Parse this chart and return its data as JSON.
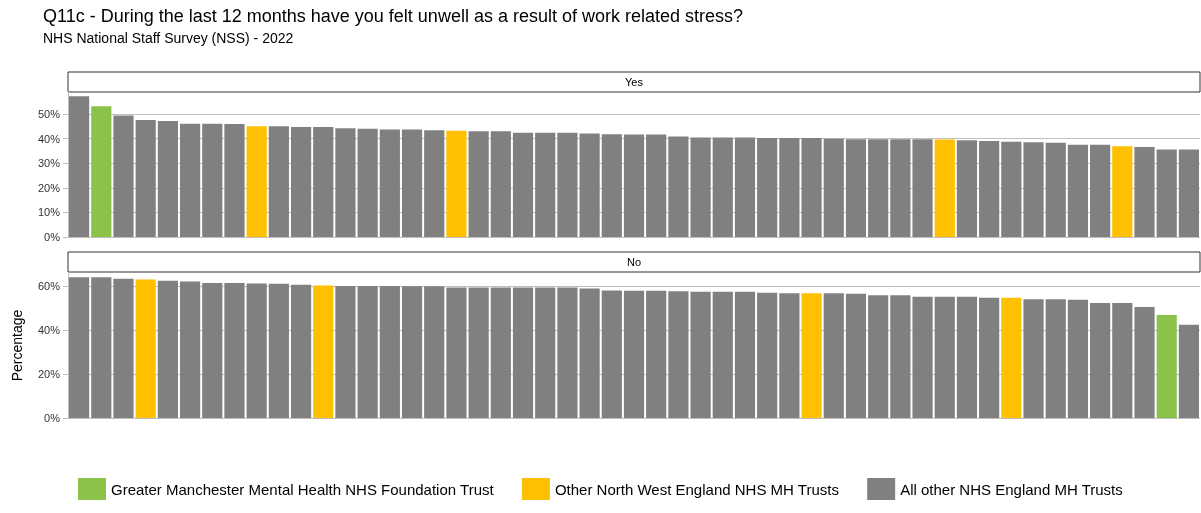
{
  "chart_data": [
    {
      "type": "bar",
      "title": "Q11c - During the last 12 months have you felt unwell as a result of work related stress?",
      "subtitle": "NHS National Staff Survey (NSS) - 2022",
      "annotations": [
        "Yes"
      ],
      "categories": [
        null,
        null,
        null,
        null,
        null,
        null,
        null,
        null,
        null,
        null,
        null,
        null,
        null,
        null,
        null,
        null,
        null,
        null,
        null,
        null,
        null,
        null,
        null,
        null,
        null,
        null,
        null,
        null,
        null,
        null,
        null,
        null,
        null,
        null,
        null,
        null,
        null,
        null,
        null,
        null,
        null,
        null,
        null,
        null,
        null,
        null,
        null,
        null,
        null,
        null,
        null
      ],
      "series": [
        {
          "color": "#8bc34a",
          "values": [
            null,
            53.2,
            null,
            null,
            null,
            null,
            null,
            null,
            null,
            null,
            null,
            null,
            null,
            null,
            null,
            null,
            null,
            null,
            null,
            null,
            null,
            null,
            null,
            null,
            null,
            null,
            null,
            null,
            null,
            null,
            null,
            null,
            null,
            null,
            null,
            null,
            null,
            null,
            null,
            null,
            null,
            null,
            null,
            null,
            null,
            null,
            null,
            null,
            null,
            null,
            null
          ]
        },
        {
          "color": "#ffc000",
          "values": [
            null,
            null,
            null,
            null,
            null,
            null,
            null,
            null,
            45.1,
            null,
            null,
            null,
            null,
            null,
            null,
            null,
            null,
            43.2,
            null,
            null,
            null,
            null,
            null,
            null,
            null,
            null,
            null,
            null,
            null,
            null,
            null,
            null,
            null,
            null,
            null,
            null,
            null,
            null,
            null,
            39.7,
            null,
            null,
            null,
            null,
            null,
            null,
            null,
            36.9,
            null,
            null,
            null
          ]
        },
        {
          "color": "#808080",
          "values": [
            57.3,
            null,
            49.4,
            47.6,
            47.2,
            46.1,
            46.1,
            46.0,
            null,
            45.1,
            44.8,
            44.8,
            44.3,
            44.0,
            43.7,
            43.7,
            43.4,
            null,
            43.0,
            43.0,
            42.4,
            42.4,
            42.4,
            42.1,
            41.8,
            41.7,
            41.7,
            40.9,
            40.5,
            40.5,
            40.5,
            40.3,
            40.3,
            40.3,
            40.0,
            39.8,
            39.8,
            39.8,
            39.8,
            null,
            39.4,
            39.1,
            38.8,
            38.6,
            38.4,
            37.5,
            37.5,
            null,
            36.6,
            35.6,
            35.6
          ]
        }
      ],
      "ylim": [
        0,
        59
      ],
      "yticks": [
        {
          "value": 0,
          "label": "0%"
        },
        {
          "value": 10,
          "label": "10%"
        },
        {
          "value": 20,
          "label": "20%"
        },
        {
          "value": 30,
          "label": "30%"
        },
        {
          "value": 40,
          "label": "40%"
        },
        {
          "value": 50,
          "label": "50%"
        }
      ],
      "grid": "y",
      "legend": false
    },
    {
      "type": "bar",
      "ylabel": "Percentage",
      "annotations": [
        "No"
      ],
      "categories": [
        null,
        null,
        null,
        null,
        null,
        null,
        null,
        null,
        null,
        null,
        null,
        null,
        null,
        null,
        null,
        null,
        null,
        null,
        null,
        null,
        null,
        null,
        null,
        null,
        null,
        null,
        null,
        null,
        null,
        null,
        null,
        null,
        null,
        null,
        null,
        null,
        null,
        null,
        null,
        null,
        null,
        null,
        null,
        null,
        null,
        null,
        null,
        null,
        null,
        null,
        null
      ],
      "series": [
        {
          "name": "Greater Manchester Mental Health NHS Foundation Trust",
          "color": "#8bc34a",
          "values": [
            null,
            null,
            null,
            null,
            null,
            null,
            null,
            null,
            null,
            null,
            null,
            null,
            null,
            null,
            null,
            null,
            null,
            null,
            null,
            null,
            null,
            null,
            null,
            null,
            null,
            null,
            null,
            null,
            null,
            null,
            null,
            null,
            null,
            null,
            null,
            null,
            null,
            null,
            null,
            null,
            null,
            null,
            null,
            null,
            null,
            null,
            null,
            null,
            null,
            46.9,
            null
          ]
        },
        {
          "name": "Other North West England NHS MH Trusts",
          "color": "#ffc000",
          "values": [
            null,
            null,
            null,
            63.0,
            null,
            null,
            null,
            null,
            null,
            null,
            null,
            60.3,
            null,
            null,
            null,
            null,
            null,
            null,
            null,
            null,
            null,
            null,
            null,
            null,
            null,
            null,
            null,
            null,
            null,
            null,
            null,
            null,
            null,
            56.8,
            null,
            null,
            null,
            null,
            null,
            null,
            null,
            null,
            54.7,
            null,
            null,
            null,
            null,
            null,
            null,
            null,
            null
          ]
        },
        {
          "name": "All other NHS England MH Trusts",
          "color": "#808080",
          "values": [
            64.1,
            64.1,
            63.4,
            null,
            62.5,
            62.1,
            61.4,
            61.4,
            61.2,
            61.1,
            60.7,
            null,
            60.1,
            60.1,
            60.1,
            60.0,
            60.0,
            59.4,
            59.4,
            59.4,
            59.4,
            59.4,
            59.4,
            58.9,
            58.0,
            57.9,
            57.9,
            57.7,
            57.5,
            57.5,
            57.5,
            57.0,
            56.8,
            null,
            56.8,
            56.5,
            55.9,
            55.9,
            55.2,
            55.2,
            55.2,
            54.7,
            null,
            54.0,
            54.0,
            53.8,
            52.4,
            52.4,
            50.5,
            null,
            42.5
          ]
        }
      ],
      "ylim": [
        0,
        66
      ],
      "yticks": [
        {
          "value": 0,
          "label": "0%"
        },
        {
          "value": 20,
          "label": "20%"
        },
        {
          "value": 40,
          "label": "40%"
        },
        {
          "value": 60,
          "label": "60%"
        }
      ],
      "grid": "y",
      "legend": "bottom"
    }
  ]
}
